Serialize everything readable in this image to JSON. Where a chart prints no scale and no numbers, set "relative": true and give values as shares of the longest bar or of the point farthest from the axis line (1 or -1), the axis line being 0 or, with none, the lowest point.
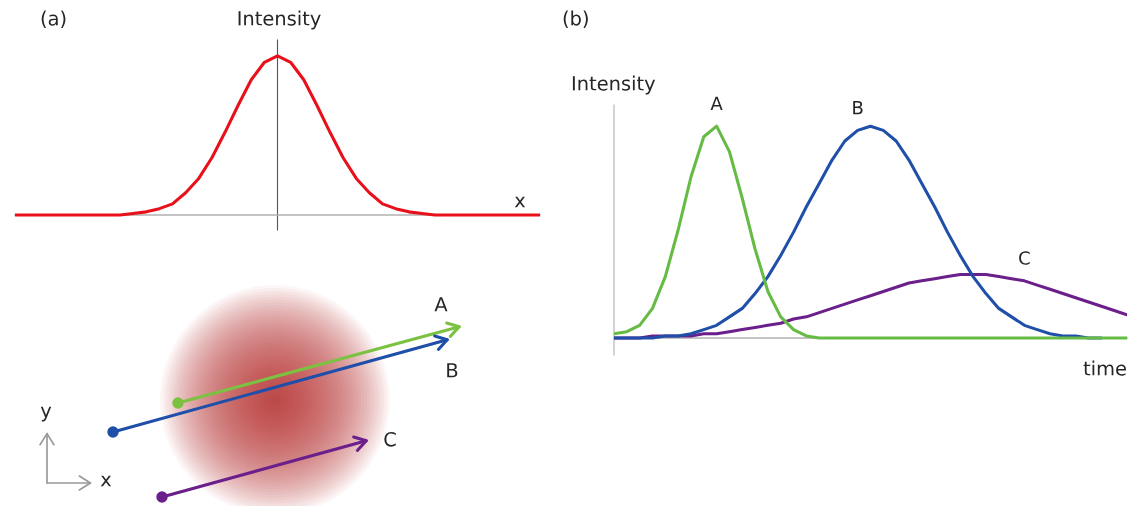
{
  "chart_data": [
    {
      "type": "line",
      "title": "(a)",
      "ylabel": "Intensity",
      "xlabel": "x",
      "relative": true,
      "categories": [
        null,
        null,
        null,
        null,
        null,
        null,
        null,
        null,
        null,
        null,
        null,
        null,
        null,
        null,
        null,
        null,
        null,
        null,
        null,
        null,
        null,
        null,
        null,
        null,
        null,
        null,
        null,
        null,
        null,
        null,
        null,
        null,
        null,
        null,
        null,
        null,
        null,
        null,
        null,
        null,
        null
      ],
      "series": [
        {
          "color": "#e8101a",
          "values": [
            0,
            0,
            0,
            0,
            0,
            0,
            0,
            0,
            0,
            0.01,
            0.02,
            0.04,
            0.07,
            0.14,
            0.23,
            0.36,
            0.52,
            0.69,
            0.85,
            0.96,
            1,
            0.96,
            0.85,
            0.69,
            0.52,
            0.36,
            0.23,
            0.14,
            0.07,
            0.04,
            0.02,
            0.01,
            0,
            0,
            0,
            0,
            0,
            0,
            0,
            0,
            0
          ]
        }
      ]
    },
    {
      "type": "line",
      "title": "(b)",
      "ylabel": "Intensity",
      "xlabel": "time",
      "relative": true,
      "categories": [
        null,
        null,
        null,
        null,
        null,
        null,
        null,
        null,
        null,
        null,
        null,
        null,
        null,
        null,
        null,
        null,
        null,
        null,
        null,
        null,
        null,
        null,
        null,
        null,
        null,
        null,
        null,
        null,
        null,
        null,
        null,
        null,
        null,
        null,
        null,
        null,
        null,
        null,
        null,
        null,
        null
      ],
      "series": [
        {
          "name": "A",
          "color": "#66bb44",
          "values": [
            0.02,
            0.03,
            0.06,
            0.14,
            0.29,
            0.51,
            0.76,
            0.95,
            1,
            0.88,
            0.66,
            0.42,
            0.22,
            0.1,
            0.04,
            0.01,
            0,
            0,
            0,
            0,
            0,
            0,
            0,
            0,
            0,
            0,
            0,
            0,
            0,
            0,
            0,
            0,
            0,
            0,
            0,
            0,
            0,
            0,
            0,
            0,
            0
          ]
        },
        {
          "name": "B",
          "color": "#1f4fa8",
          "values": [
            0,
            0,
            0,
            0,
            0.01,
            0.01,
            0.02,
            0.04,
            0.06,
            0.1,
            0.14,
            0.21,
            0.29,
            0.39,
            0.5,
            0.62,
            0.73,
            0.84,
            0.93,
            0.98,
            1,
            0.98,
            0.93,
            0.84,
            0.73,
            0.62,
            0.5,
            0.39,
            0.29,
            0.21,
            0.14,
            0.1,
            0.06,
            0.04,
            0.02,
            0.01,
            0.01,
            0,
            0,
            null,
            null
          ]
        },
        {
          "name": "C",
          "color": "#6a1f8a",
          "values": [
            0,
            0,
            0,
            0.01,
            0.01,
            0.01,
            0.01,
            0.02,
            0.02,
            0.03,
            0.04,
            0.05,
            0.06,
            0.07,
            0.09,
            0.1,
            0.12,
            0.14,
            0.16,
            0.18,
            0.2,
            0.22,
            0.24,
            0.26,
            0.27,
            0.28,
            0.29,
            0.3,
            0.3,
            0.3,
            0.29,
            0.28,
            0.27,
            0.25,
            0.23,
            0.21,
            0.19,
            0.17,
            0.15,
            0.13,
            0.11
          ]
        }
      ]
    },
    {
      "type": "other",
      "annotations": [
        "A",
        "B",
        "C",
        "y",
        "x"
      ]
    }
  ]
}
